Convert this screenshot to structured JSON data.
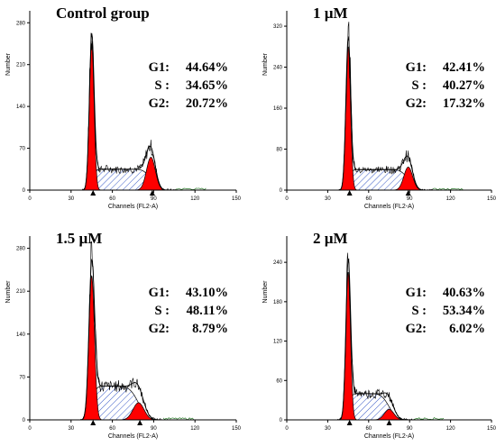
{
  "chart_data": [
    {
      "type": "area",
      "title": "Control group",
      "xlabel": "Channels (FL2-A)",
      "ylabel": "Number",
      "xlim": [
        0,
        150
      ],
      "ylim": [
        0,
        300
      ],
      "xticks": [
        0,
        30,
        60,
        90,
        120,
        150
      ],
      "yticks": [
        0,
        70,
        140,
        210,
        280
      ],
      "stats": [
        {
          "label": "G1:",
          "value": "44.64%"
        },
        {
          "label": "S :",
          "value": "34.65%"
        },
        {
          "label": "G2:",
          "value": "20.72%"
        }
      ],
      "g1": {
        "mean": 45,
        "sd": 1.7,
        "height": 245
      },
      "g2": {
        "mean": 88,
        "sd": 3.2,
        "height": 55
      },
      "s_level": 35,
      "markers": [
        46,
        89
      ]
    },
    {
      "type": "area",
      "title": "1 µM",
      "xlabel": "Channels (FL2-A)",
      "ylabel": "Number",
      "xlim": [
        0,
        150
      ],
      "ylim": [
        0,
        350
      ],
      "xticks": [
        0,
        30,
        60,
        90,
        120,
        150
      ],
      "yticks": [
        0,
        80,
        160,
        240,
        320
      ],
      "stats": [
        {
          "label": "G1:",
          "value": "42.41%"
        },
        {
          "label": "S :",
          "value": "40.27%"
        },
        {
          "label": "G2:",
          "value": "17.32%"
        }
      ],
      "g1": {
        "mean": 45,
        "sd": 1.7,
        "height": 280
      },
      "g2": {
        "mean": 89,
        "sd": 3.2,
        "height": 45
      },
      "s_level": 40,
      "markers": [
        46,
        89
      ]
    },
    {
      "type": "area",
      "title": "1.5 µM",
      "xlabel": "Channels (FL2-A)",
      "ylabel": "Number",
      "xlim": [
        0,
        150
      ],
      "ylim": [
        0,
        300
      ],
      "xticks": [
        0,
        30,
        60,
        90,
        120,
        150
      ],
      "yticks": [
        0,
        70,
        140,
        210,
        280
      ],
      "stats": [
        {
          "label": "G1:",
          "value": "43.10%"
        },
        {
          "label": "S :",
          "value": "48.11%"
        },
        {
          "label": "G2:",
          "value": "8.79%"
        }
      ],
      "g1": {
        "mean": 45,
        "sd": 2.0,
        "height": 235
      },
      "g2": {
        "mean": 79,
        "sd": 4.0,
        "height": 28
      },
      "s_level": 55,
      "markers": [
        46,
        80
      ]
    },
    {
      "type": "area",
      "title": "2 µM",
      "xlabel": "Channels (FL2-A)",
      "ylabel": "Number",
      "xlim": [
        0,
        150
      ],
      "ylim": [
        0,
        280
      ],
      "xticks": [
        0,
        30,
        60,
        90,
        120,
        150
      ],
      "yticks": [
        0,
        60,
        120,
        180,
        240
      ],
      "stats": [
        {
          "label": "G1:",
          "value": "40.63%"
        },
        {
          "label": "S :",
          "value": "53.34%"
        },
        {
          "label": "G2:",
          "value": "6.02%"
        }
      ],
      "g1": {
        "mean": 45,
        "sd": 1.7,
        "height": 225
      },
      "g2": {
        "mean": 75,
        "sd": 3.5,
        "height": 16
      },
      "s_level": 40,
      "markers": [
        46,
        75
      ]
    }
  ],
  "colors": {
    "g1_fill": "#ff0000",
    "g2_fill": "#ff0000",
    "s_hatch": "#3a5bc7",
    "marker": "#000000"
  }
}
